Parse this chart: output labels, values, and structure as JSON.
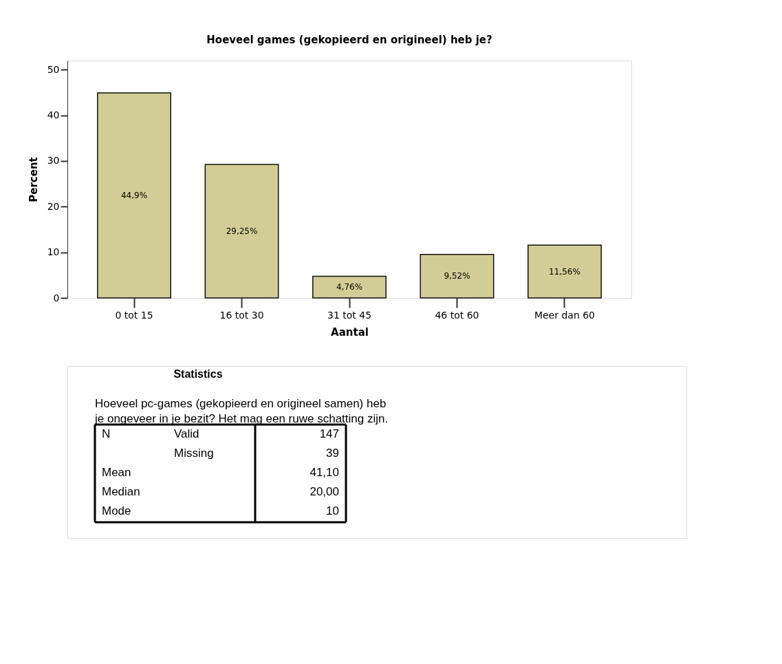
{
  "chart_data": {
    "type": "bar",
    "title": "Hoeveel games (gekopieerd en origineel) heb je?",
    "xlabel": "Aantal",
    "ylabel": "Percent",
    "categories": [
      "0 tot 15",
      "16 tot 30",
      "31 tot 45",
      "46 tot 60",
      "Meer dan 60"
    ],
    "values": [
      44.9,
      29.25,
      4.76,
      9.52,
      11.56
    ],
    "value_labels": [
      "44,9%",
      "29,25%",
      "4,76%",
      "9,52%",
      "11,56%"
    ],
    "color": "#d2cc96",
    "ylim": [
      0,
      52
    ],
    "yticks": [
      0,
      10,
      20,
      30,
      40,
      50
    ],
    "grid": false,
    "annotations": [
      "Statistics",
      "Hoeveel pc-games (gekopieerd en origineel samen) heb",
      "je ongeveer in je bezit? Het mag een ruwe schatting zijn.",
      "N",
      "Valid",
      "147",
      "Missing",
      "39",
      "Mean",
      "41,10",
      "Median",
      "20,00",
      "Mode",
      "10"
    ]
  }
}
